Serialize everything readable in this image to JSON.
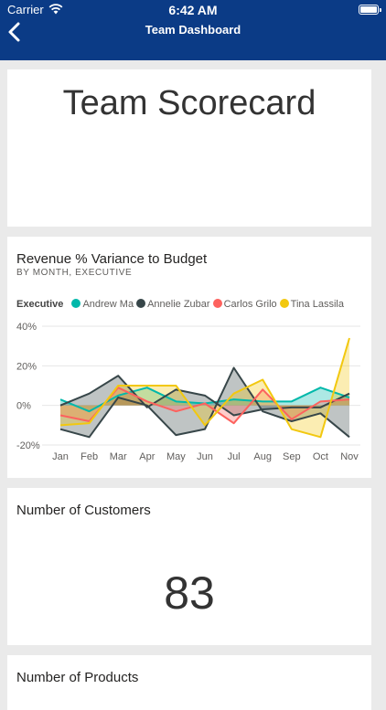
{
  "status": {
    "carrier": "Carrier",
    "time": "6:42 AM"
  },
  "nav": {
    "title": "Team Dashboard"
  },
  "scorecard": {
    "title": "Team Scorecard"
  },
  "revenue_card": {
    "title": "Revenue % Variance to Budget",
    "subtitle": "BY MONTH, EXECUTIVE",
    "legend_title": "Executive"
  },
  "customers": {
    "title": "Number of Customers",
    "value": "83"
  },
  "products": {
    "title": "Number of Products"
  },
  "chart_data": {
    "type": "area",
    "categories": [
      "Jan",
      "Feb",
      "Mar",
      "Apr",
      "May",
      "Jun",
      "Jul",
      "Aug",
      "Sep",
      "Oct",
      "Nov"
    ],
    "title": "Revenue % Variance to Budget",
    "subtitle": "BY MONTH, EXECUTIVE",
    "legend_title": "Executive",
    "legend_position": "top-left",
    "ylim": [
      -20,
      40
    ],
    "yticks": [
      40,
      20,
      0,
      -20
    ],
    "ytick_labels": [
      "40%",
      "20%",
      "0%",
      "-20%"
    ],
    "grid": true,
    "series": [
      {
        "name": "Andrew Ma",
        "color": "#01b8aa",
        "values": [
          3,
          -3,
          5,
          9,
          2,
          1,
          3,
          2,
          2,
          9,
          4
        ]
      },
      {
        "name": "Annelie Zubar",
        "color": "#374649",
        "values": [
          -12,
          -16,
          4,
          0,
          -15,
          -12,
          19,
          -3,
          -8,
          -4,
          -16
        ]
      },
      {
        "name": "Annelie Zubar trend",
        "legend": false,
        "color": "#374649",
        "values": [
          0,
          6,
          15,
          -1,
          8,
          5,
          -5,
          -2,
          -1,
          -1,
          6
        ]
      },
      {
        "name": "Carlos Grilo",
        "color": "#fd625e",
        "values": [
          -5,
          -8,
          9,
          2,
          -3,
          1,
          -9,
          8,
          -7,
          2,
          3
        ]
      },
      {
        "name": "Tina Lassila",
        "color": "#f2c80f",
        "values": [
          -10,
          -9,
          10,
          10,
          10,
          -10,
          6,
          13,
          -12,
          -16,
          34
        ]
      }
    ]
  }
}
